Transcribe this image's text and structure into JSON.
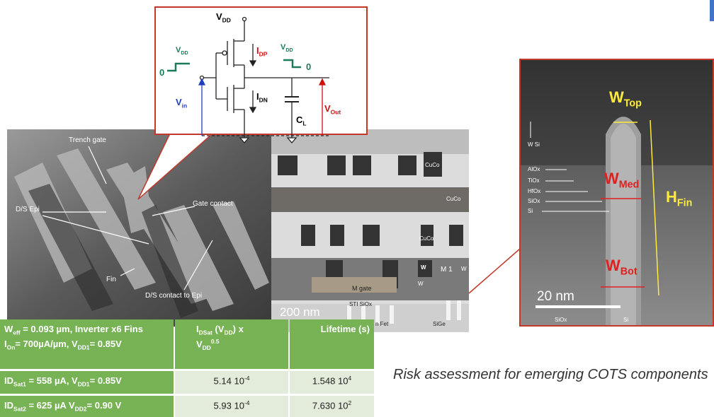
{
  "circuit": {
    "vdd_top": [
      "V",
      "DD"
    ],
    "idp": [
      "I",
      "DP"
    ],
    "idn": [
      "I",
      "DN"
    ],
    "vin": [
      "V",
      "in"
    ],
    "vout": [
      "V",
      "Out"
    ],
    "cl": [
      "C",
      "L"
    ],
    "vdd_in": [
      "V",
      "DD"
    ],
    "vdd_out": [
      "V",
      "DD"
    ],
    "zero_in": "0",
    "zero_out": "0"
  },
  "sem": {
    "trench_gate": "Trench gate",
    "ds_epi": "D/S Epi",
    "gate_contact": "Gate contact",
    "fin": "Fin",
    "ds_contact": "D/S contact to Epi"
  },
  "tem": {
    "cuco_1": "CuCo",
    "cuco_2": "CuCo",
    "cuco_3": "CuCo",
    "w_1": "W",
    "m1": "M 1",
    "w_2": "W",
    "m_gate": "M gate",
    "w_3": "W",
    "sti": "STI SiOx",
    "scale": "200 nm",
    "nfet": "n Fet",
    "sige": "SiGe"
  },
  "fin_tem": {
    "wsi": "W Si",
    "alox": "AlOx",
    "tiox": "TiOx",
    "hfox": "HfOx",
    "siox": "SiOx",
    "si": "Si",
    "w_top": [
      "W",
      "Top"
    ],
    "w_med": [
      "W",
      "Med"
    ],
    "h_fin": [
      "H",
      "Fin"
    ],
    "w_bot": [
      "W",
      "Bot"
    ],
    "scale": "20 nm",
    "siox_bottom": "SiOx",
    "si_bottom": "Si"
  },
  "table": {
    "header": [
      [
        [
          "W",
          "eff",
          " = 0.093 µm, Inverter x6 Fins"
        ],
        [
          "I",
          "On",
          "= 700µA/µm, V",
          "DD1",
          "= 0.85V"
        ]
      ],
      [
        [
          "I",
          "DSat",
          "    (V",
          "DD",
          ")    x"
        ],
        [
          "V",
          "DD",
          "0.5"
        ]
      ],
      "Lifetime (s)"
    ],
    "rows": [
      [
        [
          "ID",
          "Sat1",
          " = 558 µA, V",
          "DD1",
          "= 0.85V"
        ],
        [
          "5.14 10",
          "-4"
        ],
        [
          "1.548 10",
          "4"
        ]
      ],
      [
        [
          "ID",
          "Sat2",
          " = 625 µA  V",
          "DD2",
          "= 0.90 V"
        ],
        [
          "5.93 10",
          "-4"
        ],
        [
          "7.630 10",
          "2"
        ]
      ]
    ]
  },
  "caption": "Risk assessment for emerging COTS components"
}
